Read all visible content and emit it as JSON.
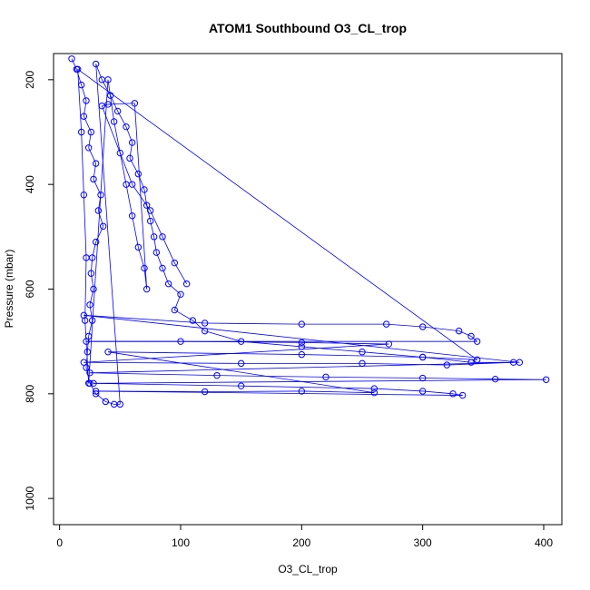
{
  "chart_data": {
    "type": "scatter",
    "title": "ATOM1 Southbound O3_CL_trop",
    "xlabel": "O3_CL_trop",
    "ylabel": "Pressure (mbar)",
    "xlim": [
      -5,
      415
    ],
    "ylim": [
      1050,
      150
    ],
    "y_reversed": true,
    "x_ticks": [
      0,
      100,
      200,
      300,
      400
    ],
    "y_ticks": [
      200,
      400,
      600,
      800,
      1000
    ],
    "grid": false,
    "legend": "none",
    "marker": "open-circle",
    "connected_lines": true,
    "color": "#0000ff",
    "series": [
      {
        "points": [
          [
            10,
            160
          ],
          [
            14,
            180
          ],
          [
            18,
            210
          ],
          [
            22,
            240
          ],
          [
            20,
            270
          ],
          [
            26,
            300
          ],
          [
            24,
            330
          ],
          [
            30,
            360
          ],
          [
            28,
            390
          ],
          [
            34,
            420
          ],
          [
            32,
            450
          ],
          [
            36,
            480
          ],
          [
            30,
            510
          ],
          [
            27,
            540
          ],
          [
            26,
            570
          ],
          [
            28,
            600
          ],
          [
            25,
            630
          ],
          [
            27,
            660
          ],
          [
            24,
            690
          ],
          [
            23,
            720
          ],
          [
            22,
            750
          ],
          [
            25,
            780
          ],
          [
            30,
            800
          ],
          [
            38,
            815
          ],
          [
            45,
            820
          ],
          [
            50,
            820
          ],
          [
            30,
            170
          ],
          [
            35,
            200
          ],
          [
            42,
            230
          ],
          [
            48,
            260
          ],
          [
            55,
            290
          ],
          [
            60,
            320
          ],
          [
            58,
            350
          ],
          [
            65,
            380
          ],
          [
            70,
            410
          ],
          [
            72,
            440
          ],
          [
            75,
            470
          ],
          [
            78,
            500
          ],
          [
            80,
            530
          ],
          [
            85,
            560
          ],
          [
            90,
            590
          ],
          [
            100,
            610
          ],
          [
            95,
            640
          ],
          [
            110,
            660
          ],
          [
            120,
            680
          ],
          [
            150,
            700
          ],
          [
            200,
            710
          ],
          [
            250,
            720
          ],
          [
            300,
            730
          ],
          [
            340,
            740
          ],
          [
            380,
            740
          ],
          [
            20,
            650
          ],
          [
            120,
            665
          ],
          [
            200,
            667
          ],
          [
            270,
            667
          ],
          [
            300,
            672
          ],
          [
            330,
            680
          ],
          [
            340,
            690
          ],
          [
            345,
            700
          ],
          [
            22,
            700
          ],
          [
            100,
            700
          ],
          [
            200,
            702
          ],
          [
            272,
            705
          ],
          [
            20,
            740
          ],
          [
            150,
            742
          ],
          [
            250,
            742
          ],
          [
            320,
            745
          ],
          [
            375,
            740
          ],
          [
            25,
            760
          ],
          [
            130,
            765
          ],
          [
            220,
            768
          ],
          [
            300,
            770
          ],
          [
            360,
            772
          ],
          [
            402,
            773
          ],
          [
            28,
            780
          ],
          [
            150,
            785
          ],
          [
            260,
            790
          ],
          [
            300,
            795
          ],
          [
            325,
            800
          ],
          [
            333,
            803
          ],
          [
            30,
            795
          ],
          [
            120,
            796
          ],
          [
            200,
            795
          ],
          [
            260,
            798
          ],
          [
            40,
            720
          ],
          [
            200,
            725
          ],
          [
            300,
            730
          ],
          [
            345,
            735
          ],
          [
            15,
            180
          ],
          [
            18,
            300
          ],
          [
            20,
            420
          ],
          [
            22,
            540
          ],
          [
            21,
            660
          ],
          [
            24,
            780
          ],
          [
            40,
            200
          ],
          [
            45,
            280
          ],
          [
            50,
            340
          ],
          [
            55,
            400
          ],
          [
            60,
            460
          ],
          [
            65,
            520
          ],
          [
            70,
            560
          ],
          [
            72,
            600
          ],
          [
            62,
            245
          ],
          [
            40,
            247
          ],
          [
            35,
            250
          ],
          [
            60,
            400
          ],
          [
            75,
            450
          ],
          [
            85,
            500
          ],
          [
            95,
            550
          ],
          [
            105,
            590
          ]
        ]
      }
    ]
  }
}
